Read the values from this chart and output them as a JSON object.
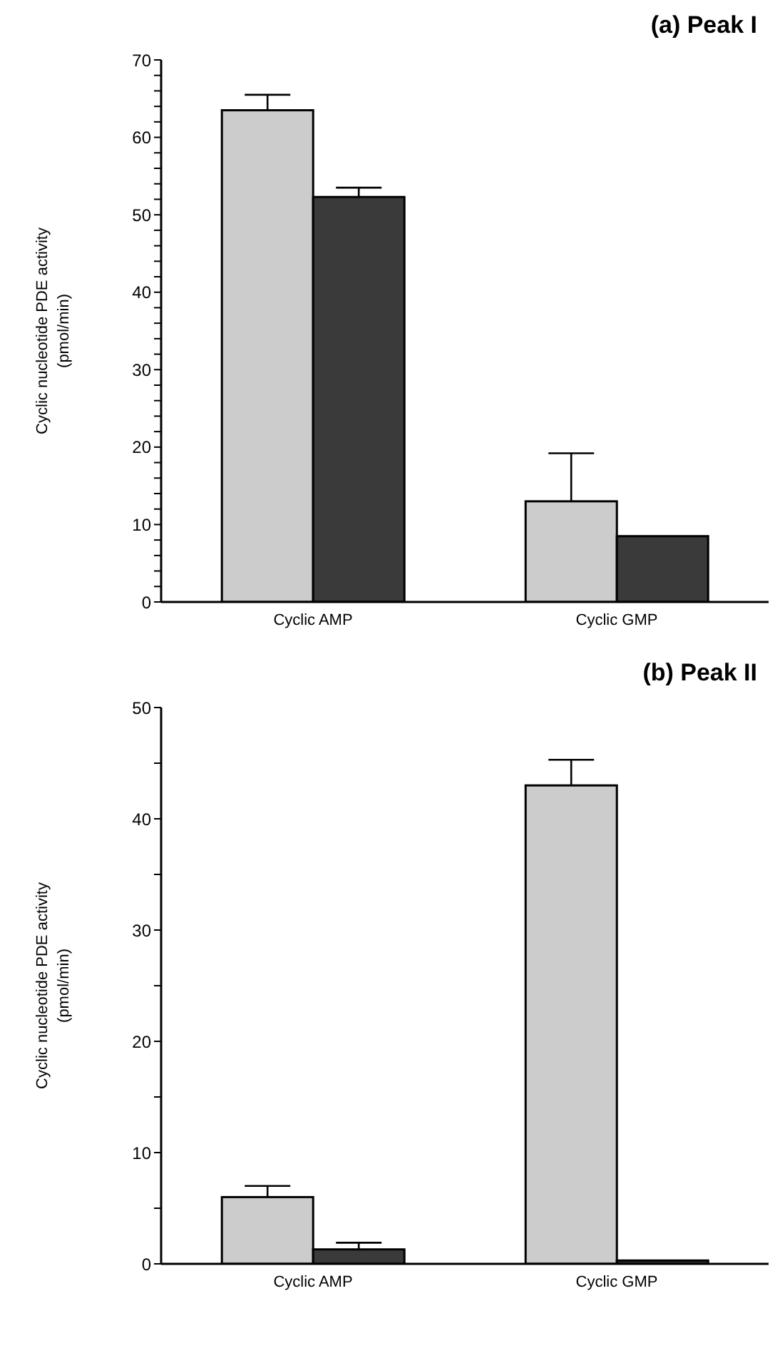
{
  "chart_data": [
    {
      "type": "bar",
      "title": "(a) Peak I",
      "ylabel": "Cyclic nucleotide PDE activity\n(pmol/min)",
      "categories": [
        "Cyclic AMP",
        "Cyclic GMP"
      ],
      "series": [
        {
          "color": "#cccccc",
          "values": [
            63.5,
            13
          ],
          "errors": [
            2,
            6.2
          ]
        },
        {
          "color": "#3a3a3a",
          "values": [
            52.3,
            8.5
          ],
          "errors": [
            1.2,
            null
          ]
        }
      ],
      "ylim": [
        0,
        70
      ],
      "yticks": [
        0,
        {
          "value": 2,
          "label": null
        },
        {
          "value": 4,
          "label": null
        },
        {
          "value": 6,
          "label": null
        },
        {
          "value": 8,
          "label": null
        },
        10,
        {
          "value": 12,
          "label": null
        },
        {
          "value": 14,
          "label": null
        },
        {
          "value": 16,
          "label": null
        },
        {
          "value": 18,
          "label": null
        },
        20,
        {
          "value": 22,
          "label": null
        },
        {
          "value": 24,
          "label": null
        },
        {
          "value": 26,
          "label": null
        },
        {
          "value": 28,
          "label": null
        },
        30,
        {
          "value": 32,
          "label": null
        },
        {
          "value": 34,
          "label": null
        },
        {
          "value": 36,
          "label": null
        },
        {
          "value": 38,
          "label": null
        },
        40,
        {
          "value": 42,
          "label": null
        },
        {
          "value": 44,
          "label": null
        },
        {
          "value": 46,
          "label": null
        },
        {
          "value": 48,
          "label": null
        },
        50,
        {
          "value": 52,
          "label": null
        },
        {
          "value": 54,
          "label": null
        },
        {
          "value": 56,
          "label": null
        },
        {
          "value": 58,
          "label": null
        },
        60,
        {
          "value": 62,
          "label": null
        },
        {
          "value": 64,
          "label": null
        },
        {
          "value": 66,
          "label": null
        },
        {
          "value": 68,
          "label": null
        },
        70
      ],
      "grid": false,
      "legend": false
    },
    {
      "type": "bar",
      "title": "(b) Peak II",
      "ylabel": "Cyclic nucleotide PDE activity\n(pmol/min)",
      "categories": [
        "Cyclic AMP",
        "Cyclic GMP"
      ],
      "series": [
        {
          "color": "#cccccc",
          "values": [
            6,
            43
          ],
          "errors": [
            1,
            2.3
          ]
        },
        {
          "color": "#3a3a3a",
          "values": [
            1.3,
            0.3
          ],
          "errors": [
            0.6,
            null
          ]
        }
      ],
      "ylim": [
        0,
        50
      ],
      "yticks": [
        0,
        {
          "value": 5,
          "label": null
        },
        10,
        {
          "value": 15,
          "label": null
        },
        20,
        {
          "value": 25,
          "label": null
        },
        30,
        {
          "value": 35,
          "label": null
        },
        40,
        {
          "value": 45,
          "label": null
        },
        50
      ],
      "grid": false,
      "legend": false
    }
  ]
}
